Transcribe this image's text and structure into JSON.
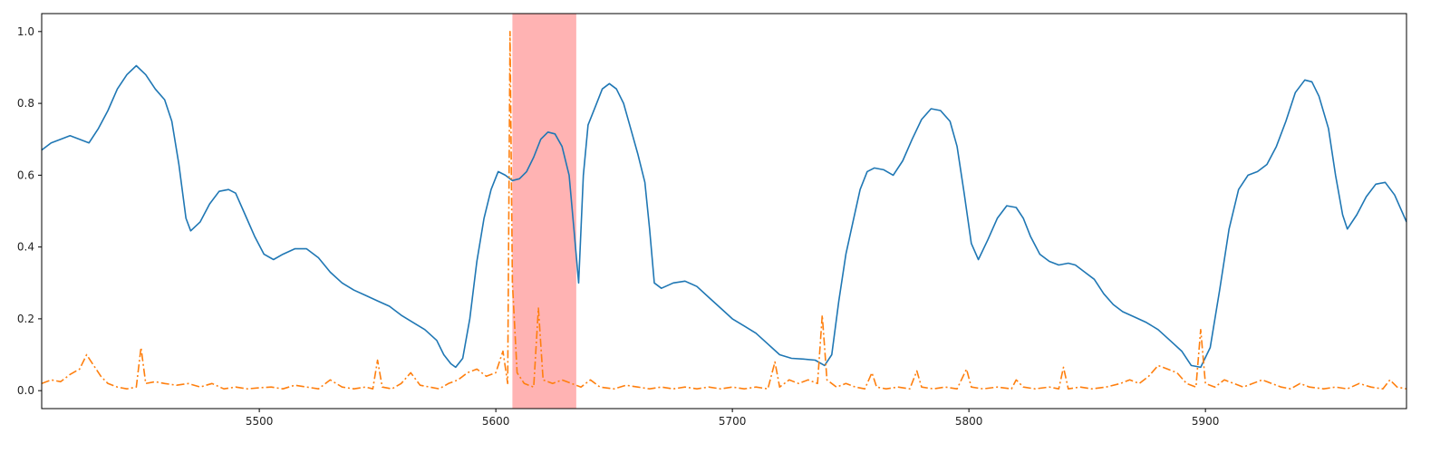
{
  "chart_data": {
    "type": "line",
    "title": "",
    "xlabel": "",
    "ylabel": "",
    "xlim": [
      5408,
      5985
    ],
    "ylim": [
      -0.05,
      1.05
    ],
    "grid": false,
    "legend": "none",
    "x_ticks": [
      5500,
      5600,
      5700,
      5800,
      5900
    ],
    "y_ticks": [
      0.0,
      0.2,
      0.4,
      0.6,
      0.8,
      1.0
    ],
    "x_tick_labels": [
      "5500",
      "5600",
      "5700",
      "5800",
      "5900"
    ],
    "y_tick_labels": [
      "0.0",
      "0.2",
      "0.4",
      "0.6",
      "0.8",
      "1.0"
    ],
    "highlight_span": {
      "x_start": 5607,
      "x_end": 5634,
      "color": "#ff9a9a",
      "opacity": 0.75
    },
    "series": [
      {
        "color": "#1f77b4",
        "style": "solid",
        "points": [
          [
            5408,
            0.67
          ],
          [
            5412,
            0.69
          ],
          [
            5416,
            0.7
          ],
          [
            5420,
            0.71
          ],
          [
            5424,
            0.7
          ],
          [
            5428,
            0.69
          ],
          [
            5432,
            0.73
          ],
          [
            5436,
            0.78
          ],
          [
            5440,
            0.84
          ],
          [
            5444,
            0.88
          ],
          [
            5448,
            0.905
          ],
          [
            5452,
            0.88
          ],
          [
            5456,
            0.84
          ],
          [
            5460,
            0.81
          ],
          [
            5463,
            0.75
          ],
          [
            5466,
            0.63
          ],
          [
            5469,
            0.48
          ],
          [
            5471,
            0.445
          ],
          [
            5475,
            0.47
          ],
          [
            5479,
            0.52
          ],
          [
            5483,
            0.555
          ],
          [
            5487,
            0.56
          ],
          [
            5490,
            0.55
          ],
          [
            5494,
            0.49
          ],
          [
            5498,
            0.43
          ],
          [
            5502,
            0.38
          ],
          [
            5506,
            0.365
          ],
          [
            5510,
            0.38
          ],
          [
            5515,
            0.395
          ],
          [
            5520,
            0.395
          ],
          [
            5525,
            0.37
          ],
          [
            5530,
            0.33
          ],
          [
            5535,
            0.3
          ],
          [
            5540,
            0.28
          ],
          [
            5545,
            0.265
          ],
          [
            5550,
            0.25
          ],
          [
            5555,
            0.235
          ],
          [
            5560,
            0.21
          ],
          [
            5565,
            0.19
          ],
          [
            5570,
            0.17
          ],
          [
            5575,
            0.14
          ],
          [
            5578,
            0.1
          ],
          [
            5581,
            0.075
          ],
          [
            5583,
            0.065
          ],
          [
            5586,
            0.09
          ],
          [
            5589,
            0.2
          ],
          [
            5592,
            0.36
          ],
          [
            5595,
            0.48
          ],
          [
            5598,
            0.56
          ],
          [
            5601,
            0.61
          ],
          [
            5604,
            0.6
          ],
          [
            5607,
            0.585
          ],
          [
            5610,
            0.59
          ],
          [
            5613,
            0.61
          ],
          [
            5616,
            0.65
          ],
          [
            5619,
            0.7
          ],
          [
            5622,
            0.72
          ],
          [
            5625,
            0.715
          ],
          [
            5628,
            0.68
          ],
          [
            5631,
            0.6
          ],
          [
            5633,
            0.45
          ],
          [
            5635,
            0.3
          ],
          [
            5637,
            0.6
          ],
          [
            5639,
            0.74
          ],
          [
            5642,
            0.79
          ],
          [
            5645,
            0.84
          ],
          [
            5648,
            0.855
          ],
          [
            5651,
            0.84
          ],
          [
            5654,
            0.8
          ],
          [
            5657,
            0.73
          ],
          [
            5660,
            0.66
          ],
          [
            5663,
            0.58
          ],
          [
            5665,
            0.45
          ],
          [
            5667,
            0.3
          ],
          [
            5670,
            0.285
          ],
          [
            5675,
            0.3
          ],
          [
            5680,
            0.305
          ],
          [
            5685,
            0.29
          ],
          [
            5690,
            0.26
          ],
          [
            5695,
            0.23
          ],
          [
            5700,
            0.2
          ],
          [
            5705,
            0.18
          ],
          [
            5710,
            0.16
          ],
          [
            5715,
            0.13
          ],
          [
            5720,
            0.1
          ],
          [
            5725,
            0.09
          ],
          [
            5730,
            0.088
          ],
          [
            5735,
            0.085
          ],
          [
            5739,
            0.07
          ],
          [
            5742,
            0.1
          ],
          [
            5745,
            0.25
          ],
          [
            5748,
            0.38
          ],
          [
            5751,
            0.47
          ],
          [
            5754,
            0.56
          ],
          [
            5757,
            0.61
          ],
          [
            5760,
            0.62
          ],
          [
            5764,
            0.615
          ],
          [
            5768,
            0.6
          ],
          [
            5772,
            0.64
          ],
          [
            5776,
            0.7
          ],
          [
            5780,
            0.755
          ],
          [
            5784,
            0.785
          ],
          [
            5788,
            0.78
          ],
          [
            5792,
            0.75
          ],
          [
            5795,
            0.68
          ],
          [
            5798,
            0.55
          ],
          [
            5801,
            0.41
          ],
          [
            5804,
            0.365
          ],
          [
            5808,
            0.42
          ],
          [
            5812,
            0.48
          ],
          [
            5816,
            0.515
          ],
          [
            5820,
            0.51
          ],
          [
            5823,
            0.48
          ],
          [
            5826,
            0.43
          ],
          [
            5830,
            0.38
          ],
          [
            5834,
            0.36
          ],
          [
            5838,
            0.35
          ],
          [
            5842,
            0.355
          ],
          [
            5845,
            0.35
          ],
          [
            5849,
            0.33
          ],
          [
            5853,
            0.31
          ],
          [
            5857,
            0.27
          ],
          [
            5861,
            0.24
          ],
          [
            5865,
            0.22
          ],
          [
            5870,
            0.205
          ],
          [
            5875,
            0.19
          ],
          [
            5880,
            0.17
          ],
          [
            5885,
            0.14
          ],
          [
            5890,
            0.11
          ],
          [
            5894,
            0.07
          ],
          [
            5898,
            0.065
          ],
          [
            5902,
            0.12
          ],
          [
            5906,
            0.28
          ],
          [
            5910,
            0.45
          ],
          [
            5914,
            0.56
          ],
          [
            5918,
            0.6
          ],
          [
            5922,
            0.61
          ],
          [
            5926,
            0.63
          ],
          [
            5930,
            0.68
          ],
          [
            5934,
            0.75
          ],
          [
            5938,
            0.83
          ],
          [
            5942,
            0.865
          ],
          [
            5945,
            0.86
          ],
          [
            5948,
            0.82
          ],
          [
            5952,
            0.73
          ],
          [
            5955,
            0.6
          ],
          [
            5958,
            0.49
          ],
          [
            5960,
            0.45
          ],
          [
            5964,
            0.49
          ],
          [
            5968,
            0.54
          ],
          [
            5972,
            0.575
          ],
          [
            5976,
            0.58
          ],
          [
            5980,
            0.545
          ],
          [
            5985,
            0.47
          ]
        ]
      },
      {
        "color": "#ff7f0e",
        "style": "dashdot",
        "points": [
          [
            5408,
            0.02
          ],
          [
            5412,
            0.03
          ],
          [
            5416,
            0.025
          ],
          [
            5420,
            0.045
          ],
          [
            5424,
            0.06
          ],
          [
            5427,
            0.1
          ],
          [
            5430,
            0.07
          ],
          [
            5433,
            0.04
          ],
          [
            5436,
            0.02
          ],
          [
            5440,
            0.01
          ],
          [
            5444,
            0.005
          ],
          [
            5448,
            0.01
          ],
          [
            5450,
            0.12
          ],
          [
            5452,
            0.02
          ],
          [
            5456,
            0.025
          ],
          [
            5460,
            0.02
          ],
          [
            5465,
            0.015
          ],
          [
            5470,
            0.02
          ],
          [
            5475,
            0.01
          ],
          [
            5480,
            0.02
          ],
          [
            5485,
            0.005
          ],
          [
            5490,
            0.01
          ],
          [
            5495,
            0.005
          ],
          [
            5500,
            0.008
          ],
          [
            5505,
            0.01
          ],
          [
            5510,
            0.005
          ],
          [
            5515,
            0.015
          ],
          [
            5520,
            0.01
          ],
          [
            5525,
            0.005
          ],
          [
            5530,
            0.03
          ],
          [
            5535,
            0.01
          ],
          [
            5540,
            0.005
          ],
          [
            5545,
            0.01
          ],
          [
            5548,
            0.005
          ],
          [
            5550,
            0.085
          ],
          [
            5552,
            0.01
          ],
          [
            5556,
            0.005
          ],
          [
            5560,
            0.02
          ],
          [
            5564,
            0.05
          ],
          [
            5568,
            0.015
          ],
          [
            5572,
            0.01
          ],
          [
            5576,
            0.005
          ],
          [
            5580,
            0.02
          ],
          [
            5584,
            0.03
          ],
          [
            5588,
            0.05
          ],
          [
            5592,
            0.06
          ],
          [
            5596,
            0.04
          ],
          [
            5600,
            0.05
          ],
          [
            5603,
            0.11
          ],
          [
            5605,
            0.02
          ],
          [
            5606,
            1.0
          ],
          [
            5607,
            0.3
          ],
          [
            5609,
            0.05
          ],
          [
            5612,
            0.02
          ],
          [
            5616,
            0.01
          ],
          [
            5618,
            0.23
          ],
          [
            5620,
            0.03
          ],
          [
            5624,
            0.02
          ],
          [
            5628,
            0.03
          ],
          [
            5632,
            0.02
          ],
          [
            5636,
            0.01
          ],
          [
            5640,
            0.03
          ],
          [
            5644,
            0.01
          ],
          [
            5650,
            0.005
          ],
          [
            5655,
            0.015
          ],
          [
            5660,
            0.01
          ],
          [
            5665,
            0.005
          ],
          [
            5670,
            0.01
          ],
          [
            5675,
            0.005
          ],
          [
            5680,
            0.01
          ],
          [
            5685,
            0.005
          ],
          [
            5690,
            0.01
          ],
          [
            5695,
            0.005
          ],
          [
            5700,
            0.01
          ],
          [
            5705,
            0.005
          ],
          [
            5710,
            0.01
          ],
          [
            5715,
            0.005
          ],
          [
            5718,
            0.08
          ],
          [
            5720,
            0.01
          ],
          [
            5724,
            0.03
          ],
          [
            5728,
            0.02
          ],
          [
            5732,
            0.03
          ],
          [
            5736,
            0.02
          ],
          [
            5738,
            0.21
          ],
          [
            5740,
            0.03
          ],
          [
            5744,
            0.01
          ],
          [
            5748,
            0.02
          ],
          [
            5752,
            0.01
          ],
          [
            5756,
            0.005
          ],
          [
            5759,
            0.05
          ],
          [
            5761,
            0.01
          ],
          [
            5765,
            0.005
          ],
          [
            5770,
            0.01
          ],
          [
            5775,
            0.005
          ],
          [
            5778,
            0.055
          ],
          [
            5780,
            0.01
          ],
          [
            5785,
            0.005
          ],
          [
            5790,
            0.01
          ],
          [
            5795,
            0.005
          ],
          [
            5799,
            0.06
          ],
          [
            5801,
            0.01
          ],
          [
            5806,
            0.005
          ],
          [
            5812,
            0.01
          ],
          [
            5818,
            0.005
          ],
          [
            5820,
            0.03
          ],
          [
            5823,
            0.01
          ],
          [
            5828,
            0.005
          ],
          [
            5834,
            0.01
          ],
          [
            5838,
            0.005
          ],
          [
            5840,
            0.065
          ],
          [
            5842,
            0.005
          ],
          [
            5847,
            0.01
          ],
          [
            5852,
            0.005
          ],
          [
            5858,
            0.01
          ],
          [
            5864,
            0.02
          ],
          [
            5868,
            0.03
          ],
          [
            5872,
            0.02
          ],
          [
            5876,
            0.04
          ],
          [
            5880,
            0.07
          ],
          [
            5884,
            0.06
          ],
          [
            5888,
            0.05
          ],
          [
            5892,
            0.02
          ],
          [
            5896,
            0.01
          ],
          [
            5898,
            0.17
          ],
          [
            5900,
            0.02
          ],
          [
            5904,
            0.01
          ],
          [
            5908,
            0.03
          ],
          [
            5912,
            0.02
          ],
          [
            5916,
            0.01
          ],
          [
            5920,
            0.02
          ],
          [
            5924,
            0.03
          ],
          [
            5928,
            0.02
          ],
          [
            5932,
            0.01
          ],
          [
            5936,
            0.005
          ],
          [
            5940,
            0.02
          ],
          [
            5944,
            0.01
          ],
          [
            5950,
            0.005
          ],
          [
            5955,
            0.01
          ],
          [
            5960,
            0.005
          ],
          [
            5965,
            0.02
          ],
          [
            5970,
            0.01
          ],
          [
            5975,
            0.005
          ],
          [
            5978,
            0.03
          ],
          [
            5981,
            0.01
          ],
          [
            5985,
            0.005
          ]
        ]
      }
    ]
  }
}
